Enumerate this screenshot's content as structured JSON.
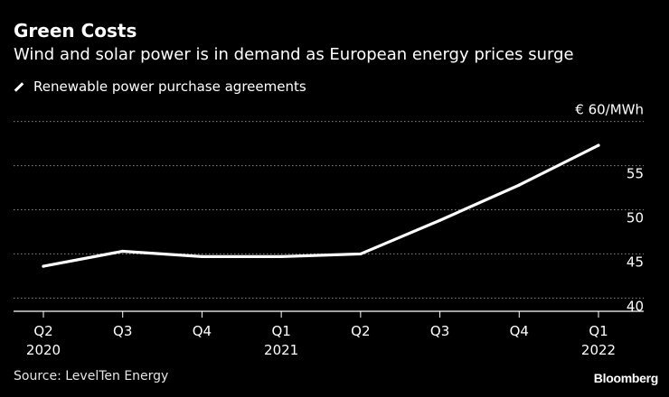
{
  "title": "Green Costs",
  "subtitle": "Wind and solar power is in demand as European energy prices surge",
  "legend_label": "Renewable power purchase agreements",
  "unit_label": "€ 60/MWh",
  "source": "Source: LevelTen Energy",
  "brand": "Bloomberg",
  "chart_data": {
    "type": "line",
    "title": "Green Costs",
    "subtitle": "Wind and solar power is in demand as European energy prices surge",
    "categories": [
      "Q2",
      "Q3",
      "Q4",
      "Q1",
      "Q2",
      "Q3",
      "Q4",
      "Q1"
    ],
    "year_labels": [
      "2020",
      "",
      "",
      "2021",
      "",
      "",
      "",
      "2022"
    ],
    "series": [
      {
        "name": "Renewable power purchase agreements",
        "values": [
          43.6,
          45.3,
          44.7,
          44.7,
          45.0,
          48.8,
          52.8,
          57.3
        ]
      }
    ],
    "ylim": [
      38.5,
      61.5
    ],
    "yticks": [
      40,
      45,
      50,
      55
    ],
    "ytick_labels": [
      "40",
      "45",
      "50",
      "55"
    ],
    "top_tick_value": 60,
    "ylabel": "€/MWh",
    "xlabel": "",
    "grid": true
  }
}
